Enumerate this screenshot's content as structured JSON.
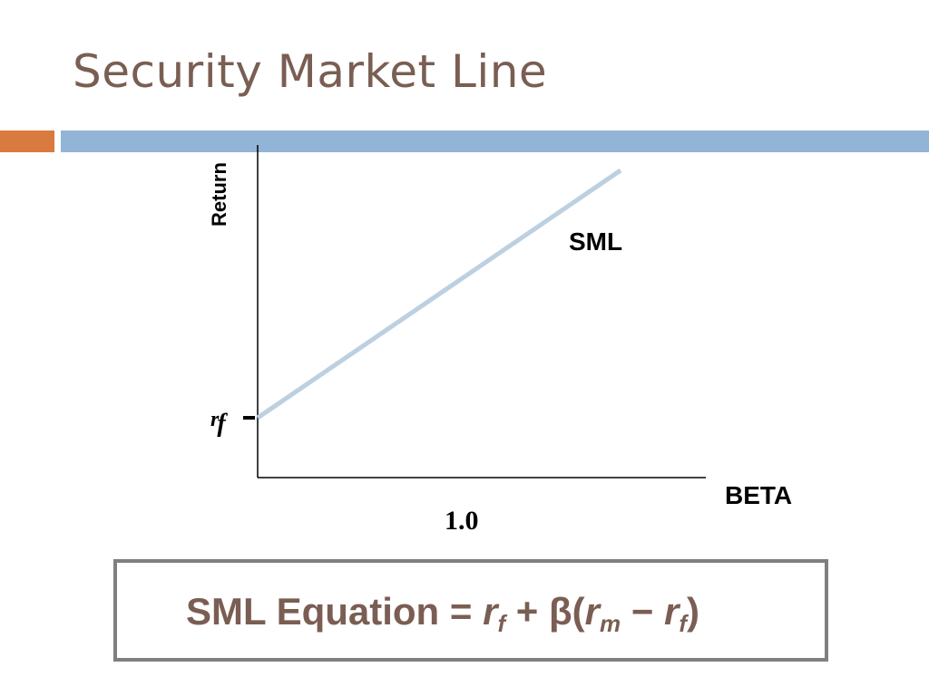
{
  "slide": {
    "title": "Security Market Line",
    "accent_colors": {
      "orange": "#d97a3e",
      "blue": "#92b4d6"
    }
  },
  "diagram": {
    "y_axis_label": "Return",
    "x_axis_label": "BETA",
    "line_label": "SML",
    "intercept_label_base": "r",
    "intercept_label_sub": "f",
    "x_tick_label": "1.0",
    "line_color": "#bcd0e2",
    "axis_color": "#000000"
  },
  "equation": {
    "prefix": "SML Equation = ",
    "rf_base": "r",
    "rf_sub": "f",
    "plus_beta": " + β(",
    "rm_base": "r",
    "rm_sub": "m",
    "minus": " − ",
    "rf2_base": "r",
    "rf2_sub": "f",
    "close": ")"
  }
}
